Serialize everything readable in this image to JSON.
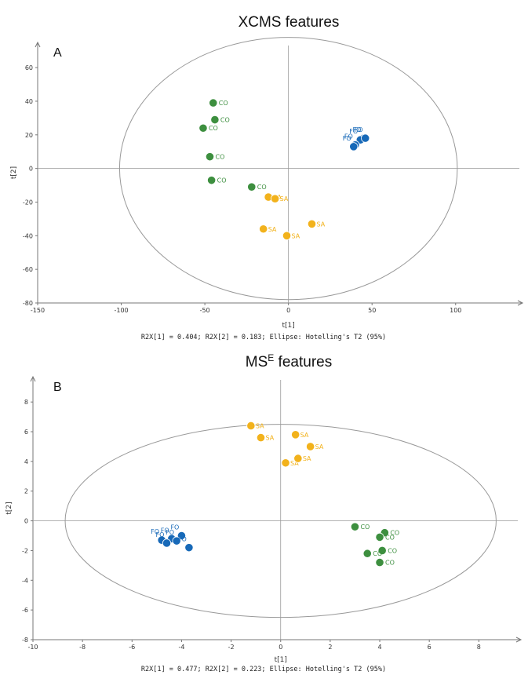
{
  "colors": {
    "FO": "#1769b8",
    "CO": "#3d8f3f",
    "SA": "#f2b21c"
  },
  "chart_data": [
    {
      "type": "scatter",
      "panel_label": "A",
      "title": "XCMS features",
      "xlabel": "t[1]",
      "ylabel": "t[2]",
      "xlim": [
        -150,
        140
      ],
      "ylim": [
        -80,
        75
      ],
      "xticks": [
        -150,
        -100,
        -50,
        0,
        50,
        100
      ],
      "yticks": [
        -80,
        -60,
        -40,
        -20,
        0,
        20,
        40,
        60
      ],
      "footer": "R2X[1] = 0.404; R2X[2] = 0.183; Ellipse: Hotelling's T2 (95%)",
      "ellipse": {
        "rx": 101,
        "ry": 78
      },
      "points": [
        {
          "group": "FO",
          "label": "FO",
          "x": 45,
          "y": 18
        },
        {
          "group": "FO",
          "label": "FO",
          "x": 43,
          "y": 17
        },
        {
          "group": "FO",
          "label": "FO",
          "x": 40,
          "y": 14
        },
        {
          "group": "FO",
          "label": "FO",
          "x": 39,
          "y": 13
        },
        {
          "group": "FO",
          "label": "FO",
          "x": 46,
          "y": 18
        },
        {
          "group": "CO",
          "label": "CO",
          "x": -45,
          "y": 39
        },
        {
          "group": "CO",
          "label": "CO",
          "x": -44,
          "y": 29
        },
        {
          "group": "CO",
          "label": "CO",
          "x": -51,
          "y": 24
        },
        {
          "group": "CO",
          "label": "CO",
          "x": -47,
          "y": 7
        },
        {
          "group": "CO",
          "label": "CO",
          "x": -46,
          "y": -7
        },
        {
          "group": "CO",
          "label": "CO",
          "x": -22,
          "y": -11
        },
        {
          "group": "SA",
          "label": "SA",
          "x": -12,
          "y": -17
        },
        {
          "group": "SA",
          "label": "SA",
          "x": -8,
          "y": -18
        },
        {
          "group": "SA",
          "label": "SA",
          "x": -15,
          "y": -36
        },
        {
          "group": "SA",
          "label": "SA",
          "x": 14,
          "y": -33
        },
        {
          "group": "SA",
          "label": "SA",
          "x": -1,
          "y": -40
        }
      ]
    },
    {
      "type": "scatter",
      "panel_label": "B",
      "title": "MS",
      "title_superscript": "E",
      "title_suffix": " features",
      "xlabel": "t[1]",
      "ylabel": "t[2]",
      "xlim": [
        -10,
        9.7
      ],
      "ylim": [
        -8,
        9.7
      ],
      "xticks": [
        -10,
        -8,
        -6,
        -4,
        -2,
        0,
        2,
        4,
        6,
        8
      ],
      "yticks": [
        -8,
        -6,
        -4,
        -2,
        0,
        2,
        4,
        6,
        8
      ],
      "footer": "R2X[1] = 0.477; R2X[2] = 0.223; Ellipse: Hotelling's T2 (95%)",
      "ellipse": {
        "rx": 8.7,
        "ry": 6.5
      },
      "points": [
        {
          "group": "FO",
          "label": "FO",
          "x": -4.8,
          "y": -1.3
        },
        {
          "group": "FO",
          "label": "FO",
          "x": -4.4,
          "y": -1.2
        },
        {
          "group": "FO",
          "label": "FO",
          "x": -4.0,
          "y": -1.0
        },
        {
          "group": "FO",
          "label": "FO",
          "x": -4.2,
          "y": -1.35
        },
        {
          "group": "FO",
          "label": "FO",
          "x": -3.7,
          "y": -1.8
        },
        {
          "group": "FO",
          "label": "FO",
          "x": -4.6,
          "y": -1.5
        },
        {
          "group": "CO",
          "label": "CO",
          "x": 3.0,
          "y": -0.4
        },
        {
          "group": "CO",
          "label": "CO",
          "x": 4.2,
          "y": -0.8
        },
        {
          "group": "CO",
          "label": "CO",
          "x": 4.0,
          "y": -1.1
        },
        {
          "group": "CO",
          "label": "CO",
          "x": 4.1,
          "y": -2.0
        },
        {
          "group": "CO",
          "label": "CO",
          "x": 3.5,
          "y": -2.2
        },
        {
          "group": "CO",
          "label": "CO",
          "x": 4.0,
          "y": -2.8
        },
        {
          "group": "SA",
          "label": "SA",
          "x": -1.2,
          "y": 6.4
        },
        {
          "group": "SA",
          "label": "SA",
          "x": -0.8,
          "y": 5.6
        },
        {
          "group": "SA",
          "label": "SA",
          "x": 0.6,
          "y": 5.8
        },
        {
          "group": "SA",
          "label": "SA",
          "x": 1.2,
          "y": 5.0
        },
        {
          "group": "SA",
          "label": "SA",
          "x": 0.2,
          "y": 3.9
        },
        {
          "group": "SA",
          "label": "SA",
          "x": 0.7,
          "y": 4.2
        }
      ]
    }
  ]
}
